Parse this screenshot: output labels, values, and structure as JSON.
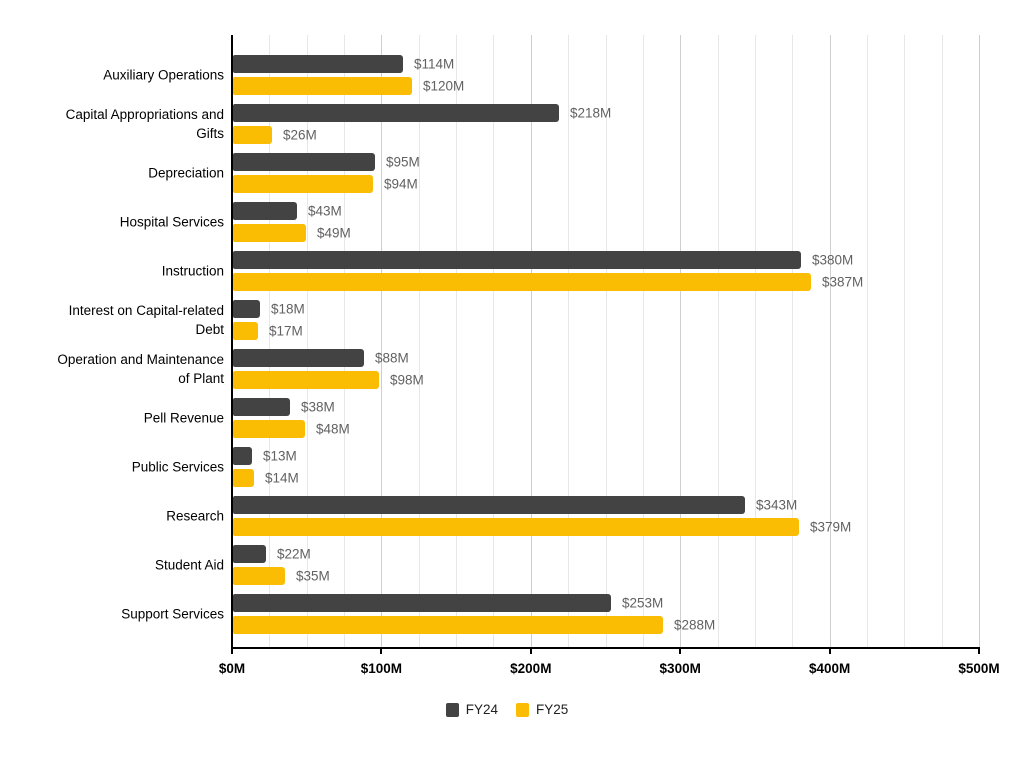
{
  "chart_data": {
    "type": "bar",
    "orientation": "horizontal",
    "title": "",
    "xlabel": "",
    "ylabel": "",
    "categories": [
      "Auxiliary Operations",
      "Capital Appropriations and\nGifts",
      "Depreciation",
      "Hospital Services",
      "Instruction",
      "Interest on Capital-related\nDebt",
      "Operation and Maintenance\nof Plant",
      "Pell Revenue",
      "Public Services",
      "Research",
      "Student Aid",
      "Support Services"
    ],
    "series": [
      {
        "name": "FY24",
        "color": "#434343",
        "values": [
          114,
          218,
          95,
          43,
          380,
          18,
          88,
          38,
          13,
          343,
          22,
          253
        ],
        "value_labels": [
          "$114M",
          "$218M",
          "$95M",
          "$43M",
          "$380M",
          "$18M",
          "$88M",
          "$38M",
          "$13M",
          "$343M",
          "$22M",
          "$253M"
        ]
      },
      {
        "name": "FY25",
        "color": "#FBBC04",
        "values": [
          120,
          26,
          94,
          49,
          387,
          17,
          98,
          48,
          14,
          379,
          35,
          288
        ],
        "value_labels": [
          "$120M",
          "$26M",
          "$94M",
          "$49M",
          "$387M",
          "$17M",
          "$98M",
          "$48M",
          "$14M",
          "$379M",
          "$35M",
          "$288M"
        ]
      }
    ],
    "x_axis": {
      "min": 0,
      "max": 500,
      "major_step": 100,
      "minor_step": 25,
      "tick_labels": [
        "$0M",
        "$100M",
        "$200M",
        "$300M",
        "$400M",
        "$500M"
      ]
    },
    "legend": {
      "position": "bottom",
      "entries": [
        {
          "label": "FY24",
          "color": "#434343"
        },
        {
          "label": "FY25",
          "color": "#FBBC04"
        }
      ]
    },
    "grid": {
      "on": true,
      "minor_color": "#e7e7e7",
      "major_color": "#cfcfcf"
    },
    "styles": {
      "background": "#ffffff",
      "axis_color": "#000000",
      "category_label_color": "#000000",
      "value_label_color": "#616161",
      "tick_label_color": "#000000"
    }
  }
}
